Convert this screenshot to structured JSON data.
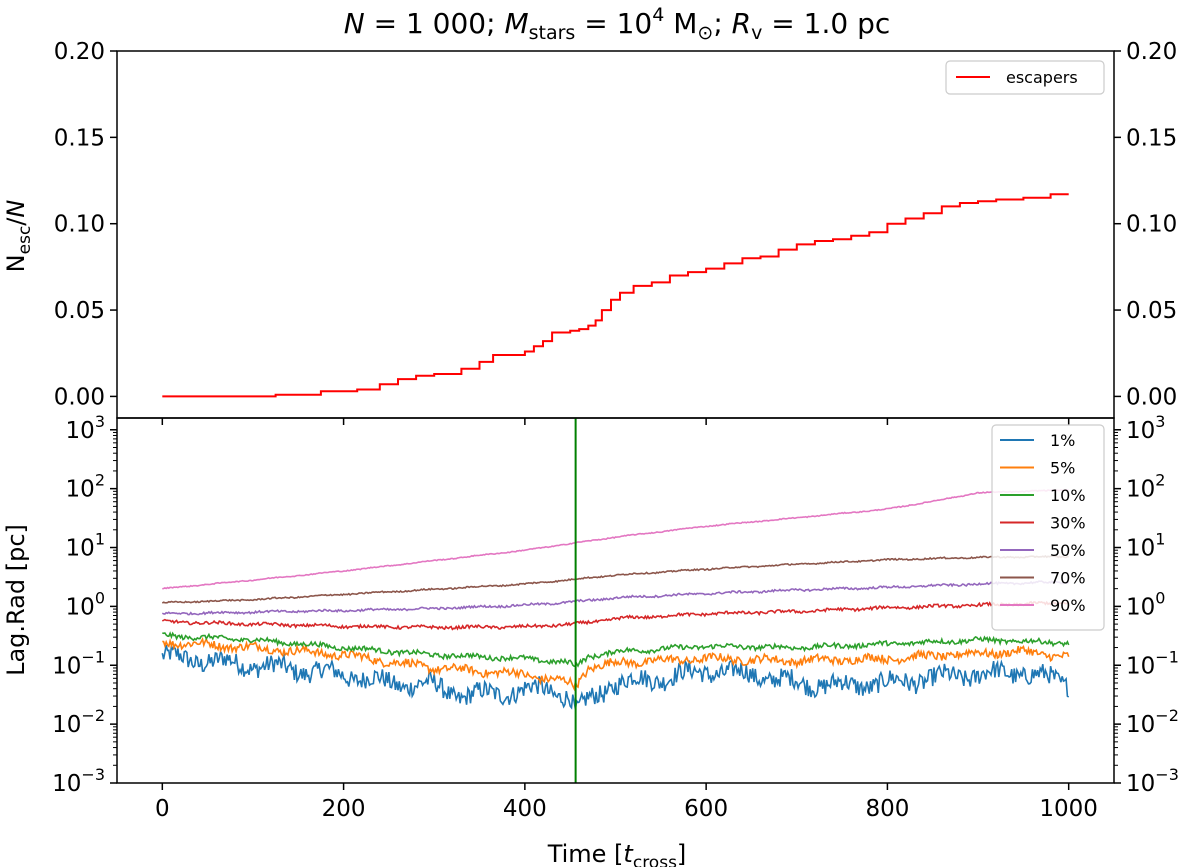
{
  "chart_data": [
    {
      "type": "line",
      "panel": "top",
      "title": "N = 1 000; M_stars = 10^4 M_⊙; R_v = 1.0 pc",
      "title_parts": {
        "n_label": "N",
        "n_value": "1 000",
        "m_label": "M",
        "m_sub": "stars",
        "m_base": "10",
        "m_exp": "4",
        "m_unit": "M",
        "m_unit_sub": "⊙",
        "r_label": "R",
        "r_sub": "v",
        "r_value": "1.0 pc",
        "eq": " = ",
        "sep": "; "
      },
      "ylabel": "N_esc/N",
      "ylabel_parts": {
        "n": "N",
        "sub": "esc",
        "slash": "/",
        "n2": "N"
      },
      "xlim": [
        -50,
        1050
      ],
      "ylim": [
        -0.0125,
        0.2
      ],
      "yticks": [
        0.0,
        0.05,
        0.1,
        0.15,
        0.2
      ],
      "ytick_labels": [
        "0.00",
        "0.05",
        "0.10",
        "0.15",
        "0.20"
      ],
      "xticks": [
        0,
        200,
        400,
        600,
        800,
        1000
      ],
      "legend": {
        "placement": "top-right",
        "entries": [
          "escapers"
        ]
      },
      "series": [
        {
          "name": "escapers",
          "color": "#ff0000",
          "x": [
            0,
            125,
            175,
            215,
            240,
            260,
            280,
            300,
            330,
            350,
            365,
            380,
            400,
            410,
            420,
            430,
            440,
            450,
            460,
            470,
            478,
            485,
            495,
            505,
            520,
            540,
            560,
            580,
            600,
            620,
            640,
            660,
            680,
            700,
            720,
            740,
            760,
            780,
            800,
            820,
            840,
            860,
            880,
            900,
            920,
            950,
            980,
            1000
          ],
          "y": [
            0.0,
            0.001,
            0.003,
            0.004,
            0.007,
            0.01,
            0.012,
            0.013,
            0.016,
            0.02,
            0.024,
            0.024,
            0.026,
            0.029,
            0.032,
            0.037,
            0.037,
            0.038,
            0.039,
            0.041,
            0.044,
            0.05,
            0.056,
            0.06,
            0.064,
            0.066,
            0.07,
            0.072,
            0.074,
            0.077,
            0.08,
            0.081,
            0.085,
            0.088,
            0.09,
            0.091,
            0.093,
            0.095,
            0.1,
            0.103,
            0.106,
            0.11,
            0.112,
            0.113,
            0.114,
            0.115,
            0.117,
            0.117
          ]
        }
      ]
    },
    {
      "type": "line",
      "panel": "bottom",
      "ylabel": "Lag.Rad [pc]",
      "xlabel": "Time [t_cross]",
      "xlabel_parts": {
        "pre": "Time [",
        "t": "t",
        "sub": "cross",
        "post": "]"
      },
      "xlim": [
        -50,
        1050
      ],
      "ylim_log10": [
        -3,
        3.2
      ],
      "yscale": "log",
      "yticks_exp": [
        -3,
        -2,
        -1,
        0,
        1,
        2,
        3
      ],
      "ytick_base": "10",
      "xticks": [
        0,
        200,
        400,
        600,
        800,
        1000
      ],
      "xtick_labels": [
        "0",
        "200",
        "400",
        "600",
        "800",
        "1000"
      ],
      "vline": {
        "x": 456,
        "color": "#008000"
      },
      "legend": {
        "placement": "top-right",
        "entries": [
          "1%",
          "5%",
          "10%",
          "30%",
          "50%",
          "70%",
          "90%"
        ]
      },
      "series": [
        {
          "name": "1%",
          "color": "#1f77b4",
          "noise": 0.16,
          "x": [
            0,
            100,
            200,
            250,
            300,
            330,
            380,
            420,
            450,
            456,
            470,
            500,
            550,
            600,
            650,
            700,
            750,
            800,
            850,
            900,
            950,
            1000
          ],
          "y": [
            0.14,
            0.1,
            0.07,
            0.05,
            0.045,
            0.03,
            0.035,
            0.04,
            0.03,
            0.015,
            0.025,
            0.05,
            0.06,
            0.08,
            0.07,
            0.05,
            0.045,
            0.05,
            0.06,
            0.07,
            0.075,
            0.05
          ]
        },
        {
          "name": "5%",
          "color": "#ff7f0e",
          "noise": 0.07,
          "x": [
            0,
            100,
            200,
            300,
            400,
            450,
            456,
            470,
            500,
            600,
            700,
            800,
            900,
            950,
            1000
          ],
          "y": [
            0.25,
            0.2,
            0.15,
            0.09,
            0.07,
            0.05,
            0.045,
            0.09,
            0.11,
            0.13,
            0.12,
            0.13,
            0.16,
            0.17,
            0.14
          ]
        },
        {
          "name": "10%",
          "color": "#2ca02c",
          "noise": 0.04,
          "x": [
            0,
            100,
            200,
            300,
            400,
            450,
            456,
            470,
            500,
            600,
            700,
            800,
            900,
            1000
          ],
          "y": [
            0.32,
            0.27,
            0.2,
            0.15,
            0.13,
            0.11,
            0.095,
            0.14,
            0.17,
            0.21,
            0.2,
            0.23,
            0.27,
            0.24
          ]
        },
        {
          "name": "30%",
          "color": "#d62728",
          "noise": 0.025,
          "x": [
            0,
            100,
            200,
            300,
            400,
            456,
            500,
            600,
            700,
            800,
            900,
            1000
          ],
          "y": [
            0.55,
            0.5,
            0.46,
            0.44,
            0.45,
            0.5,
            0.62,
            0.75,
            0.82,
            0.95,
            1.05,
            1.15
          ]
        },
        {
          "name": "50%",
          "color": "#9467bd",
          "noise": 0.018,
          "x": [
            0,
            100,
            200,
            300,
            400,
            456,
            500,
            600,
            700,
            800,
            900,
            1000
          ],
          "y": [
            0.75,
            0.8,
            0.85,
            0.92,
            1.05,
            1.2,
            1.4,
            1.65,
            1.9,
            2.1,
            2.4,
            2.6
          ]
        },
        {
          "name": "70%",
          "color": "#8c564b",
          "noise": 0.012,
          "x": [
            0,
            100,
            200,
            300,
            400,
            456,
            500,
            600,
            700,
            800,
            900,
            1000
          ],
          "y": [
            1.15,
            1.3,
            1.6,
            1.95,
            2.4,
            2.9,
            3.4,
            4.3,
            5.2,
            6.2,
            6.8,
            7.0
          ]
        },
        {
          "name": "90%",
          "color": "#e377c2",
          "noise": 0.008,
          "x": [
            0,
            100,
            200,
            300,
            400,
            456,
            500,
            600,
            700,
            800,
            860,
            900,
            950,
            1000
          ],
          "y": [
            2.0,
            2.8,
            4.0,
            6.0,
            9.0,
            12.0,
            15.0,
            23.0,
            32.0,
            45.0,
            65.0,
            85.0,
            90.0,
            95.0
          ]
        }
      ]
    }
  ]
}
